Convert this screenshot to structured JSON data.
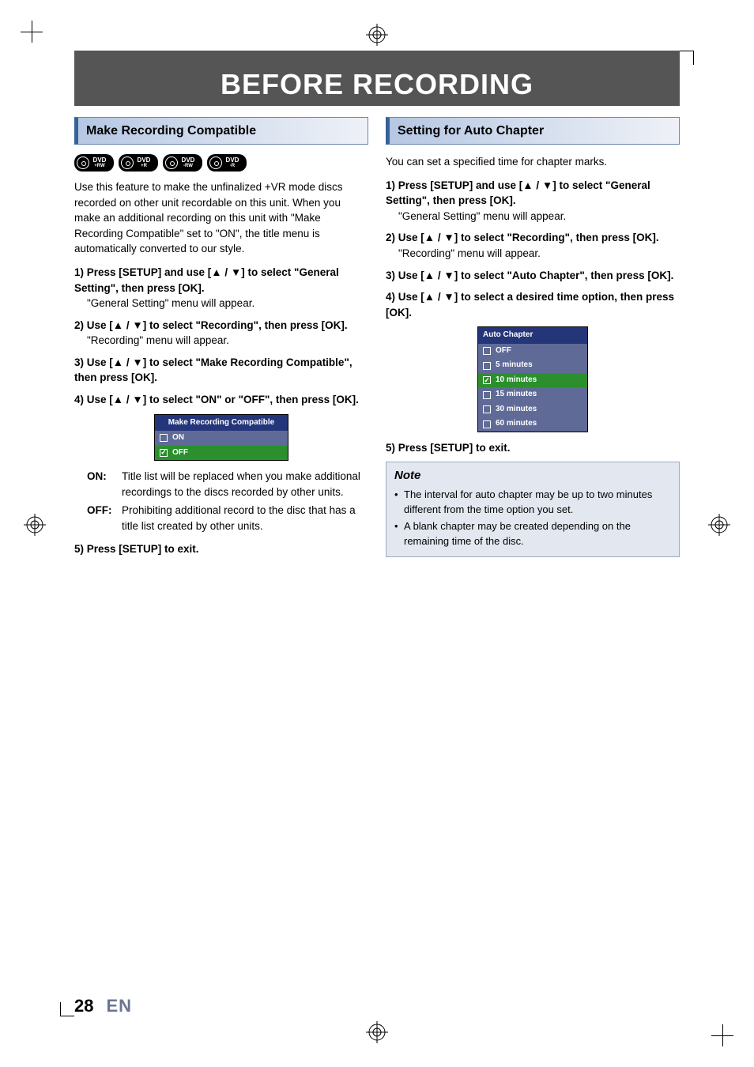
{
  "colors": {
    "bannerBg": "#555555",
    "headingBorder": "#366199",
    "headingGradStart": "#b5c7e3",
    "headingGradEnd": "#eef1f7",
    "menuHeader": "#24357a",
    "menuRow": "#5f6a97",
    "menuSelected": "#2b8f2d",
    "noteBg": "#e3e7ef",
    "langColor": "#6a7590"
  },
  "banner": "BEFORE RECORDING",
  "left": {
    "heading": "Make Recording Compatible",
    "badges": [
      "DVD +RW",
      "DVD +R",
      "DVD -RW",
      "DVD -R"
    ],
    "intro": "Use this feature to make the unfinalized +VR mode discs recorded on other unit recordable on this unit. When you make an additional recording on this unit with \"Make Recording Compatible\" set to \"ON\", the title menu is automatically converted to our style.",
    "step1_title": "1) Press [SETUP] and use [▲ / ▼] to select \"General Setting\", then press [OK].",
    "step1_desc": "\"General Setting\" menu will appear.",
    "step2_title": "2) Use [▲ / ▼] to select \"Recording\", then press [OK].",
    "step2_desc": "\"Recording\" menu will appear.",
    "step3_title": "3) Use [▲ / ▼] to select \"Make Recording Compatible\", then press [OK].",
    "step4_title": "4) Use [▲ / ▼] to select \"ON\" or \"OFF\", then press [OK].",
    "menu": {
      "title": "Make Recording Compatible",
      "rows": [
        {
          "label": "ON",
          "checked": false,
          "selected": false
        },
        {
          "label": "OFF",
          "checked": true,
          "selected": true
        }
      ]
    },
    "on_label": "ON:",
    "on_text": "Title list will be replaced when you make additional recordings to the discs recorded by other units.",
    "off_label": "OFF:",
    "off_text": "Prohibiting additional record to the disc that has a title list created by other units.",
    "step5_title": "5) Press [SETUP] to exit."
  },
  "right": {
    "heading": "Setting for Auto Chapter",
    "intro": "You can set a specified time for chapter marks.",
    "step1_title": "1) Press [SETUP] and use [▲ / ▼] to select \"General Setting\", then press [OK].",
    "step1_desc": "\"General Setting\" menu will appear.",
    "step2_title": "2) Use [▲ / ▼] to select \"Recording\", then press [OK].",
    "step2_desc": "\"Recording\" menu will appear.",
    "step3_title": "3) Use [▲ / ▼] to select \"Auto Chapter\", then press [OK].",
    "step4_title": "4) Use [▲ / ▼] to select a desired time option, then press [OK].",
    "menu": {
      "title": "Auto Chapter",
      "rows": [
        {
          "label": "OFF",
          "checked": false,
          "selected": false
        },
        {
          "label": "5 minutes",
          "checked": false,
          "selected": false
        },
        {
          "label": "10 minutes",
          "checked": true,
          "selected": true
        },
        {
          "label": "15 minutes",
          "checked": false,
          "selected": false
        },
        {
          "label": "30 minutes",
          "checked": false,
          "selected": false
        },
        {
          "label": "60 minutes",
          "checked": false,
          "selected": false
        }
      ]
    },
    "step5_title": "5) Press [SETUP] to exit.",
    "note_title": "Note",
    "note_items": [
      "The interval for auto chapter may be up to two minutes different from the time option you set.",
      "A blank chapter may be created depending on the remaining time of the disc."
    ]
  },
  "footer": {
    "page": "28",
    "lang": "EN"
  }
}
